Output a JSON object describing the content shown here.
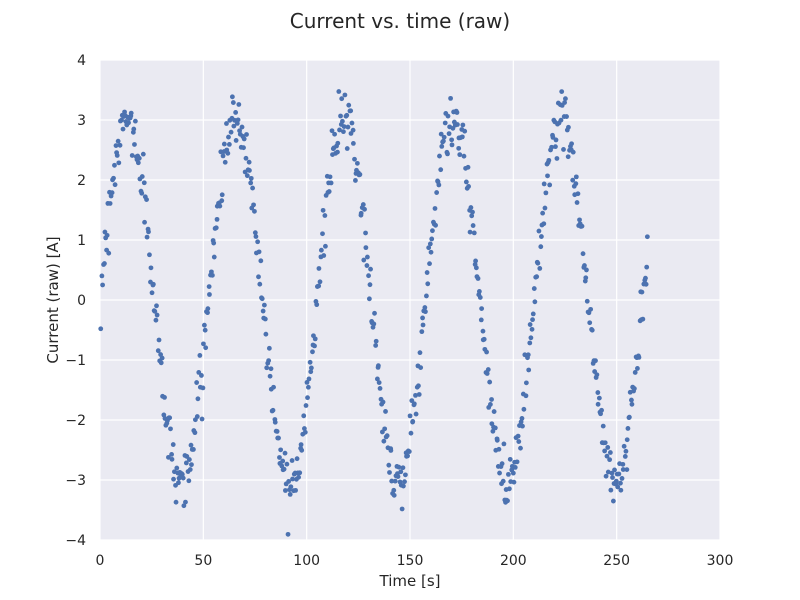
{
  "chart_data": {
    "type": "scatter",
    "title": "Current vs. time (raw)",
    "xlabel": "Time [s]",
    "ylabel": "Current (raw) [A]",
    "xlim": [
      0,
      300
    ],
    "ylim": [
      -4,
      4
    ],
    "xticks": [
      "0",
      "50",
      "100",
      "150",
      "200",
      "250",
      "300"
    ],
    "yticks": [
      "4",
      "3",
      "2",
      "1",
      "0",
      "−1",
      "−2",
      "−3",
      "−4"
    ],
    "grid": true,
    "background_color": "#eaeaf2",
    "marker_color": "#4c72b0",
    "signal": {
      "shape": "sinusoid",
      "amplitude": 3.0,
      "period_s": 52.5,
      "t_start_s": 0.5,
      "t_end_s": 265,
      "n_points": 700,
      "noise_std": 0.22
    }
  }
}
